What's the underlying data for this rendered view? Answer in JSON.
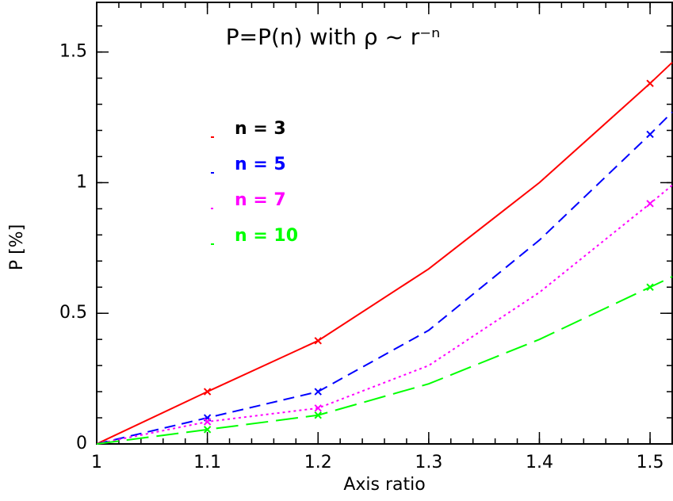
{
  "chart_data": {
    "type": "line",
    "title": "P=P(n) with ρ ~ r⁻ⁿ",
    "x_label": "Axis ratio",
    "y_label": "P [%]",
    "x": [
      1,
      1.1,
      1.2,
      1.3,
      1.4,
      1.5,
      1.52
    ],
    "marker_x": [
      1.1,
      1.2,
      1.5
    ],
    "series": [
      {
        "name": "n = 3",
        "color": "#ff0000",
        "style": "solid",
        "values": [
          0,
          0.2,
          0.395,
          0.67,
          1.0,
          1.38,
          1.46
        ]
      },
      {
        "name": "n = 5",
        "color": "#0000ff",
        "style": "dashed",
        "values": [
          0,
          0.1,
          0.2,
          0.435,
          0.78,
          1.185,
          1.27
        ]
      },
      {
        "name": "n = 7",
        "color": "#ff00ff",
        "style": "dotted",
        "values": [
          0,
          0.085,
          0.137,
          0.3,
          0.58,
          0.92,
          0.99
        ]
      },
      {
        "name": "n = 10",
        "color": "#00ff00",
        "style": "long-dashed",
        "values": [
          0,
          0.055,
          0.11,
          0.23,
          0.4,
          0.6,
          0.64
        ]
      }
    ],
    "xlim": [
      1,
      1.52
    ],
    "ylim": [
      0,
      1.69
    ],
    "xticks": [
      1,
      1.1,
      1.2,
      1.3,
      1.4,
      1.5
    ],
    "yticks": [
      0,
      0.5,
      1,
      1.5
    ]
  }
}
